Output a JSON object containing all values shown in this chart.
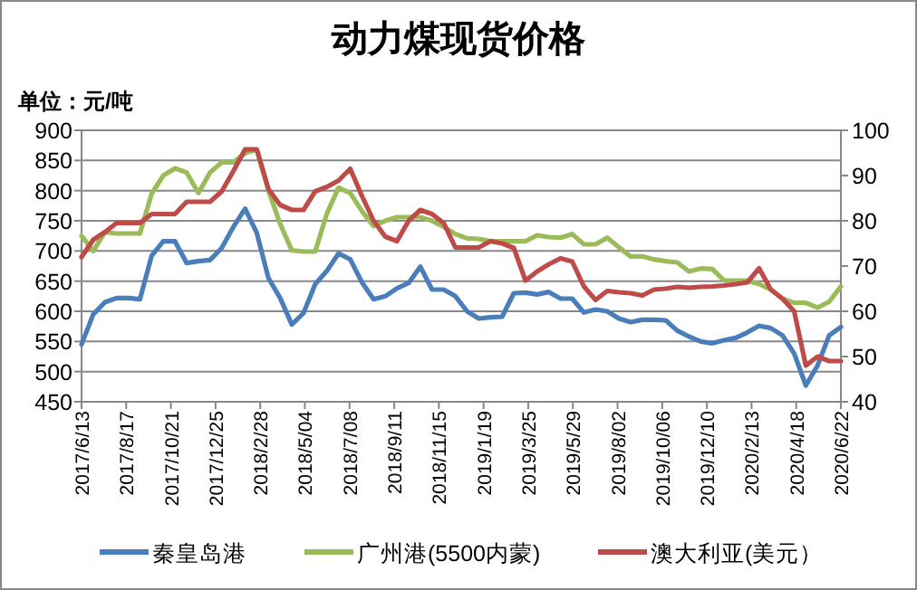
{
  "chart_data": {
    "type": "line",
    "title": "动力煤现货价格",
    "ylabel": "单位：元/吨",
    "x": [
      "2017-06-13",
      "2017-06-30",
      "2017-07-17",
      "2017-08-03",
      "2017-08-20",
      "2017-09-06",
      "2017-09-23",
      "2017-10-10",
      "2017-10-27",
      "2017-11-13",
      "2017-11-30",
      "2017-12-17",
      "2018-01-03",
      "2018-01-20",
      "2018-02-06",
      "2018-02-23",
      "2018-03-12",
      "2018-03-29",
      "2018-04-15",
      "2018-05-02",
      "2018-05-19",
      "2018-06-05",
      "2018-06-22",
      "2018-07-09",
      "2018-07-26",
      "2018-08-12",
      "2018-08-29",
      "2018-09-15",
      "2018-10-02",
      "2018-10-19",
      "2018-11-05",
      "2018-11-22",
      "2018-12-09",
      "2018-12-26",
      "2019-01-12",
      "2019-01-29",
      "2019-02-15",
      "2019-03-04",
      "2019-03-21",
      "2019-04-07",
      "2019-04-24",
      "2019-05-11",
      "2019-05-28",
      "2019-06-14",
      "2019-07-01",
      "2019-07-18",
      "2019-08-04",
      "2019-08-21",
      "2019-09-07",
      "2019-09-24",
      "2019-10-11",
      "2019-10-28",
      "2019-11-14",
      "2019-12-01",
      "2019-12-18",
      "2020-01-04",
      "2020-01-21",
      "2020-02-07",
      "2020-02-24",
      "2020-03-12",
      "2020-03-29",
      "2020-04-15",
      "2020-05-02",
      "2020-05-19",
      "2020-06-05",
      "2020-06-22"
    ],
    "series": [
      {
        "name": "秦皇岛港",
        "color": "#4a7ebb",
        "values": [
          545,
          595,
          615,
          622,
          622,
          620,
          692,
          716,
          716,
          680,
          683,
          685,
          705,
          740,
          770,
          730,
          655,
          622,
          578,
          597,
          645,
          667,
          696,
          686,
          648,
          620,
          625,
          638,
          647,
          674,
          636,
          636,
          625,
          600,
          588,
          590,
          591,
          630,
          631,
          628,
          632,
          621,
          621,
          598,
          603,
          600,
          588,
          582,
          586,
          586,
          585,
          568,
          558,
          550,
          547,
          552,
          556,
          565,
          576,
          572,
          560,
          530,
          477,
          510,
          560,
          574
        ]
      },
      {
        "name": "广州港(5500内蒙)",
        "color": "#9bbb59",
        "values": [
          725,
          700,
          731,
          729,
          729,
          729,
          795,
          825,
          837,
          830,
          796,
          830,
          847,
          847,
          862,
          868,
          800,
          745,
          701,
          699,
          699,
          762,
          805,
          796,
          766,
          741,
          750,
          756,
          756,
          756,
          750,
          740,
          728,
          721,
          720,
          716,
          716,
          716,
          716,
          726,
          723,
          722,
          728,
          711,
          711,
          722,
          706,
          691,
          691,
          686,
          683,
          681,
          666,
          671,
          670,
          651,
          651,
          651,
          645,
          636,
          621,
          614,
          614,
          606,
          616,
          641
        ]
      },
      {
        "name": "澳大利亚(美元）",
        "color": "#be4b48",
        "axis": "y2",
        "values": [
          72,
          75.8,
          77.5,
          79.5,
          79.5,
          79.5,
          81.5,
          81.5,
          81.5,
          84.2,
          84.2,
          84.2,
          86.5,
          91,
          95.8,
          95.8,
          87,
          83.5,
          82.4,
          82.4,
          86.5,
          87.5,
          88.9,
          91.5,
          85.5,
          80,
          76.5,
          75.5,
          80,
          82.4,
          81.5,
          79.5,
          74.1,
          74.1,
          74.1,
          75.5,
          75,
          74,
          66.8,
          68.8,
          70.4,
          71.7,
          71,
          65.5,
          62.5,
          64.5,
          64.2,
          64,
          63.5,
          64.8,
          65,
          65.4,
          65.2,
          65.4,
          65.5,
          65.7,
          66,
          66.4,
          69.5,
          64.8,
          62.8,
          60,
          48,
          50,
          49,
          49
        ]
      }
    ],
    "xlim": [
      "2017-06-13",
      "2020-06-22"
    ],
    "xticks": [
      {
        "value": "2017-06-13",
        "label": "2017/6/13"
      },
      {
        "value": "2017-08-17",
        "label": "2017/8/17"
      },
      {
        "value": "2017-10-21",
        "label": "2017/10/21"
      },
      {
        "value": "2017-12-25",
        "label": "2017/12/25"
      },
      {
        "value": "2018-02-28",
        "label": "2018/2/28"
      },
      {
        "value": "2018-05-04",
        "label": "2018/5/04"
      },
      {
        "value": "2018-07-08",
        "label": "2018/7/08"
      },
      {
        "value": "2018-09-11",
        "label": "2018/9/11"
      },
      {
        "value": "2018-11-15",
        "label": "2018/11/15"
      },
      {
        "value": "2019-01-19",
        "label": "2019/1/19"
      },
      {
        "value": "2019-03-25",
        "label": "2019/3/25"
      },
      {
        "value": "2019-05-29",
        "label": "2019/5/29"
      },
      {
        "value": "2019-08-02",
        "label": "2019/8/02"
      },
      {
        "value": "2019-10-06",
        "label": "2019/10/06"
      },
      {
        "value": "2019-12-10",
        "label": "2019/12/10"
      },
      {
        "value": "2020-02-13",
        "label": "2020/2/13"
      },
      {
        "value": "2020-04-18",
        "label": "2020/4/18"
      },
      {
        "value": "2020-06-22",
        "label": "2020/6/22"
      }
    ],
    "ylim": [
      450,
      900
    ],
    "yticks": [
      450,
      500,
      550,
      600,
      650,
      700,
      750,
      800,
      850,
      900
    ],
    "y2lim": [
      40,
      100
    ],
    "y2ticks": [
      40,
      50,
      60,
      70,
      80,
      90,
      100
    ],
    "grid": "y",
    "legend": "bottom"
  }
}
